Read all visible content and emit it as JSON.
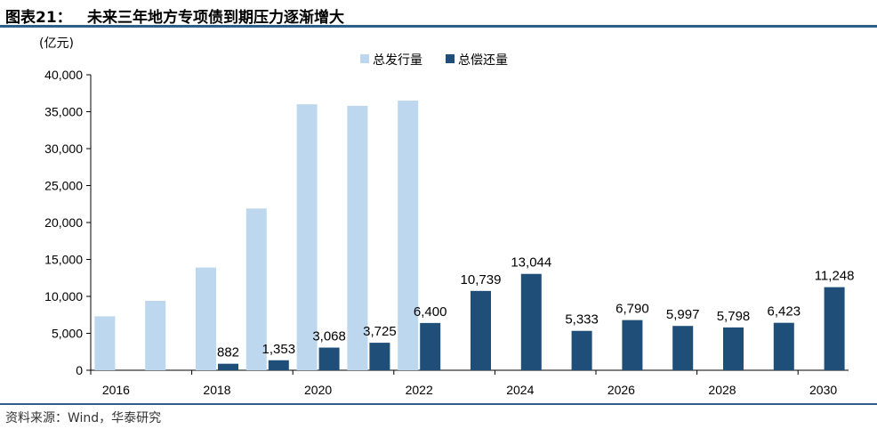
{
  "header": {
    "label": "图表21：",
    "title": "未来三年地方专项债到期压力逐渐增大"
  },
  "footer": {
    "source": "资料来源：Wind，华泰研究"
  },
  "colors": {
    "issuance": "#bdd7ee",
    "repayment": "#1f4e79",
    "rule": "#2e5f8a",
    "axis": "#000000"
  },
  "chart_data": {
    "type": "bar",
    "unit_label": "(亿元)",
    "categories": [
      "2016",
      "2017",
      "2018",
      "2019",
      "2020",
      "2021",
      "2022",
      "2023",
      "2024",
      "2025",
      "2026",
      "2027",
      "2028",
      "2029",
      "2030"
    ],
    "x_tick_labels": [
      "2016",
      "2018",
      "2020",
      "2022",
      "2024",
      "2026",
      "2028",
      "2030"
    ],
    "ylim": [
      0,
      40000
    ],
    "y_ticks": [
      0,
      5000,
      10000,
      15000,
      20000,
      25000,
      30000,
      35000,
      40000
    ],
    "y_tick_labels": [
      "0",
      "5,000",
      "10,000",
      "15,000",
      "20,000",
      "25,000",
      "30,000",
      "35,000",
      "40,000"
    ],
    "legend_position": "top-center",
    "grid": false,
    "series": [
      {
        "name": "总发行量",
        "color": "#bdd7ee",
        "values": [
          7300,
          9400,
          13900,
          21900,
          36000,
          35800,
          36500,
          null,
          null,
          null,
          null,
          null,
          null,
          null,
          null
        ],
        "labels": [
          "",
          "",
          "",
          "",
          "",
          "",
          "",
          "",
          "",
          "",
          "",
          "",
          "",
          "",
          ""
        ]
      },
      {
        "name": "总偿还量",
        "color": "#1f4e79",
        "values": [
          null,
          null,
          882,
          1353,
          3068,
          3725,
          6400,
          10739,
          13044,
          5333,
          6790,
          5997,
          5798,
          6423,
          11248
        ],
        "labels": [
          "",
          "",
          "882",
          "1,353",
          "3,068",
          "3,725",
          "6,400",
          "10,739",
          "13,044",
          "5,333",
          "6,790",
          "5,997",
          "5,798",
          "6,423",
          "11,248"
        ]
      }
    ]
  }
}
